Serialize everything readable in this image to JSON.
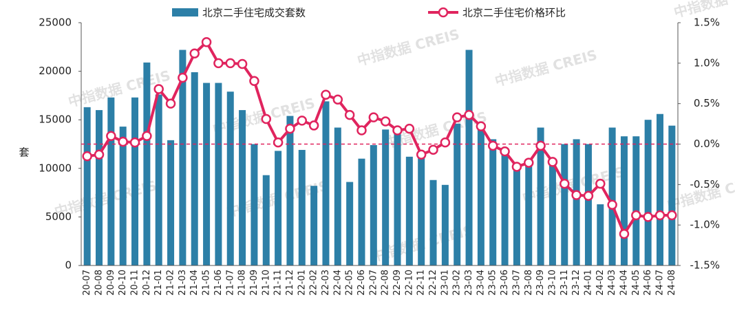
{
  "chart_data": {
    "type": "bar_line",
    "watermark": "中指数据 CREIS",
    "y_label": "套",
    "categories": [
      "20-07",
      "20-08",
      "20-09",
      "20-10",
      "20-11",
      "20-12",
      "21-01",
      "21-02",
      "21-03",
      "21-04",
      "21-05",
      "21-06",
      "21-07",
      "21-08",
      "21-09",
      "21-10",
      "21-11",
      "21-12",
      "22-01",
      "22-02",
      "22-03",
      "22-04",
      "22-05",
      "22-06",
      "22-07",
      "22-08",
      "22-09",
      "22-10",
      "22-11",
      "22-12",
      "23-01",
      "23-02",
      "23-03",
      "23-04",
      "23-05",
      "23-06",
      "23-07",
      "23-08",
      "23-09",
      "23-10",
      "23-11",
      "23-12",
      "24-01",
      "24-02",
      "24-03",
      "24-04",
      "24-05",
      "24-06",
      "24-07",
      "24-08"
    ],
    "series": [
      {
        "name": "北京二手住宅成交套数",
        "type": "bar",
        "color": "#2c7fa7",
        "values": [
          16300,
          16000,
          17300,
          14300,
          17300,
          20900,
          17600,
          12900,
          22200,
          19900,
          18800,
          18800,
          17900,
          16000,
          12500,
          9300,
          11800,
          15400,
          11900,
          8200,
          16900,
          14200,
          8600,
          11000,
          12400,
          14000,
          13700,
          11200,
          11300,
          8800,
          8300,
          14600,
          22200,
          14100,
          13000,
          11400,
          10000,
          10300,
          14200,
          10300,
          12500,
          13000,
          12500,
          6300,
          14200,
          13300,
          13300,
          15000,
          15600,
          14400
        ]
      },
      {
        "name": "北京二手住宅价格环比",
        "type": "line",
        "axis": "y2",
        "color": "#e0245e",
        "values": [
          -0.15,
          -0.13,
          0.1,
          0.03,
          0.02,
          0.1,
          0.68,
          0.5,
          0.82,
          1.12,
          1.26,
          1.0,
          1.0,
          0.99,
          0.78,
          0.31,
          0.02,
          0.19,
          0.29,
          0.23,
          0.61,
          0.55,
          0.36,
          0.17,
          0.33,
          0.28,
          0.17,
          0.19,
          -0.13,
          -0.07,
          0.02,
          0.33,
          0.36,
          0.22,
          -0.02,
          -0.09,
          -0.28,
          -0.23,
          -0.02,
          -0.22,
          -0.49,
          -0.63,
          -0.64,
          -0.49,
          -0.75,
          -1.11,
          -0.88,
          -0.9,
          -0.88,
          -0.88
        ]
      }
    ],
    "ylim": [
      0,
      25000
    ],
    "yticks": [
      0,
      5000,
      10000,
      15000,
      20000,
      25000
    ],
    "y2lim": [
      -1.5,
      1.5
    ],
    "y2ticks": [
      {
        "value": -1.5,
        "label": "-1.5%"
      },
      {
        "value": -1,
        "label": "-1.0%"
      },
      {
        "value": -0.5,
        "label": "-0.5%"
      },
      {
        "value": 0,
        "label": "0.0%"
      },
      {
        "value": 0.5,
        "label": "0.5%"
      },
      {
        "value": 1,
        "label": "1.0%"
      },
      {
        "value": 1.5,
        "label": "1.5%"
      }
    ],
    "y2_reference_line": 0,
    "legend": "top"
  }
}
